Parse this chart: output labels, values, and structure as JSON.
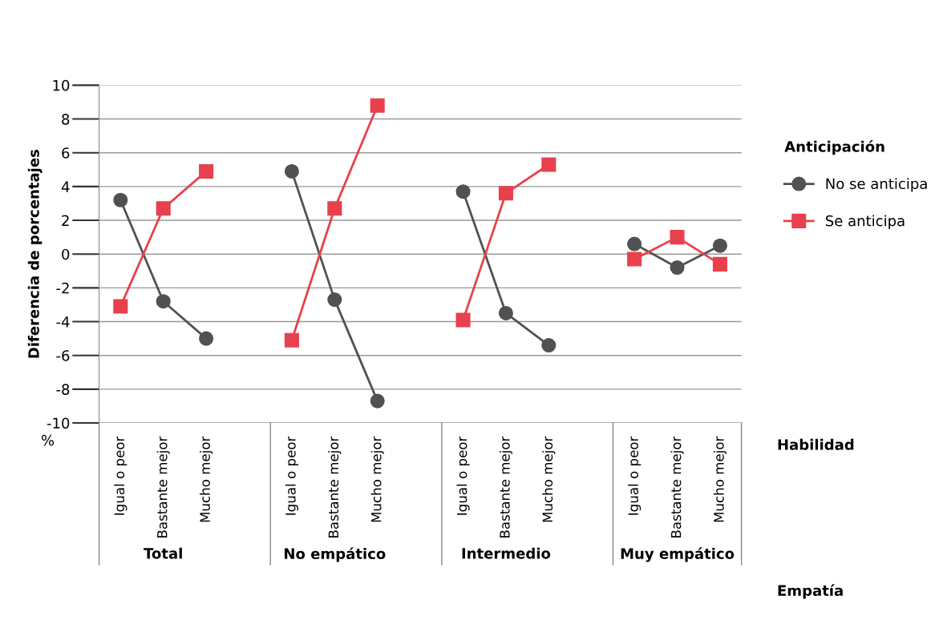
{
  "chart_data": {
    "type": "line",
    "ylabel": "Diferencia de porcentajes",
    "legend_title": "Anticipación",
    "categories": [
      "Igual o peor",
      "Bastante mejor",
      "Mucho mejor",
      null,
      "Igual o peor",
      "Bastante mejor",
      "Mucho mejor",
      null,
      "Igual o peor",
      "Bastante mejor",
      "Mucho mejor",
      null,
      "Igual o peor",
      "Bastante mejor",
      "Mucho mejor"
    ],
    "series": [
      {
        "name": "No se anticipa",
        "color": "#505153",
        "marker": "circle",
        "values": [
          3.2,
          -2.8,
          -5.0,
          null,
          4.9,
          -2.7,
          -8.7,
          null,
          3.7,
          -3.5,
          -5.4,
          null,
          0.6,
          -0.8,
          0.5
        ]
      },
      {
        "name": "Se anticipa",
        "color": "#e8404c",
        "marker": "square",
        "values": [
          -3.1,
          2.7,
          4.9,
          null,
          -5.1,
          2.7,
          8.8,
          null,
          -3.9,
          3.6,
          5.3,
          null,
          -0.3,
          1.0,
          -0.6
        ]
      }
    ],
    "ylim": [
      -10,
      10
    ],
    "yticks": [
      -10,
      -8,
      -6,
      -4,
      -2,
      0,
      2,
      4,
      6,
      8,
      10
    ],
    "grid": "y",
    "legend": "right",
    "annotations": [
      "Total",
      "No empático",
      "Intermedio",
      "Muy empático",
      "%",
      "Habilidad",
      "Empatía"
    ]
  }
}
